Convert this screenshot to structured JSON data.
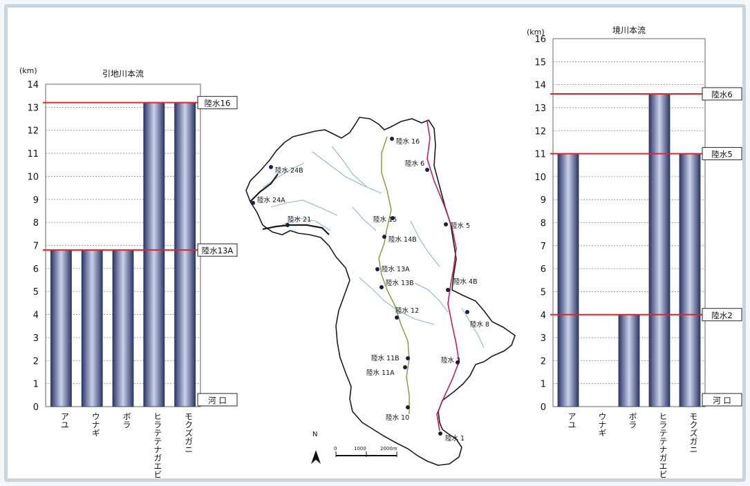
{
  "chart_data": [
    {
      "type": "bar",
      "title": "引地川本流",
      "ylabel": "(km)",
      "ylim": [
        0,
        14
      ],
      "categories": [
        "アユ",
        "ウナギ",
        "ボラ",
        "ヒラテテナガエビ",
        "モクズガニ"
      ],
      "values": [
        6.8,
        6.8,
        6.8,
        13.2,
        13.2
      ],
      "reference_lines": [
        {
          "label": "陸水16",
          "value": 13.2
        },
        {
          "label": "陸水13A",
          "value": 6.8
        }
      ],
      "origin_label": "河 口",
      "grid": true
    },
    {
      "type": "bar",
      "title": "境川本流",
      "ylabel": "(km)",
      "ylim": [
        0,
        16
      ],
      "categories": [
        "アユ",
        "ウナギ",
        "ボラ",
        "ヒラテテナガエビ",
        "モクズガニ"
      ],
      "values": [
        11,
        0,
        4,
        13.6,
        11
      ],
      "reference_lines": [
        {
          "label": "陸水6",
          "value": 13.6
        },
        {
          "label": "陸水5",
          "value": 11
        },
        {
          "label": "陸水2",
          "value": 4
        }
      ],
      "origin_label": "河 口",
      "grid": true
    }
  ],
  "map": {
    "sites": [
      "陸水 16",
      "陸水 6",
      "陸水 24B",
      "陸水 24A",
      "陸水 21",
      "陸水 15",
      "陸水 5",
      "陸水 14B",
      "陸水 13A",
      "陸水 4B",
      "陸水 13B",
      "陸水 12",
      "陸水 8",
      "陸水 11B",
      "陸水 3",
      "陸水 11A",
      "陸水 10",
      "陸水 1"
    ],
    "north_label": "N",
    "scale_labels": [
      "0",
      "1000",
      "2000m"
    ]
  },
  "colors": {
    "bar_dark": "#3b4a7c",
    "bar_light": "#c7cfe6",
    "reference_line": "#e0242a",
    "grid": "#8a8a8a"
  }
}
